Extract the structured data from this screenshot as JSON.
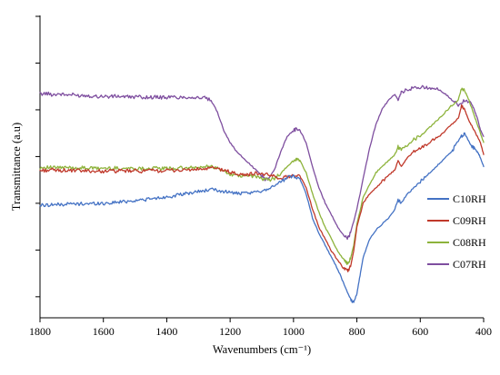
{
  "chart_data": {
    "type": "line",
    "title": "",
    "xlabel": "Wavenumbers (cm⁻¹)",
    "ylabel": "Transmittance (a.u)",
    "xlim": [
      1800,
      400
    ],
    "x_reversed": true,
    "x_ticks": [
      1800,
      1600,
      1400,
      1200,
      1000,
      800,
      600,
      400
    ],
    "y_tick_count": 7,
    "y_tick_labels_shown": false,
    "grid": false,
    "legend_position": "right",
    "series": [
      {
        "name": "C10RH",
        "color": "#4472C4",
        "points": [
          [
            1800,
            0.372
          ],
          [
            1780,
            0.373
          ],
          [
            1760,
            0.375
          ],
          [
            1740,
            0.374
          ],
          [
            1720,
            0.376
          ],
          [
            1700,
            0.377
          ],
          [
            1680,
            0.376
          ],
          [
            1660,
            0.378
          ],
          [
            1640,
            0.377
          ],
          [
            1620,
            0.379
          ],
          [
            1600,
            0.378
          ],
          [
            1580,
            0.38
          ],
          [
            1560,
            0.382
          ],
          [
            1540,
            0.384
          ],
          [
            1520,
            0.386
          ],
          [
            1500,
            0.388
          ],
          [
            1480,
            0.39
          ],
          [
            1460,
            0.392
          ],
          [
            1440,
            0.394
          ],
          [
            1420,
            0.397
          ],
          [
            1400,
            0.4
          ],
          [
            1380,
            0.403
          ],
          [
            1360,
            0.406
          ],
          [
            1340,
            0.41
          ],
          [
            1320,
            0.414
          ],
          [
            1300,
            0.418
          ],
          [
            1280,
            0.421
          ],
          [
            1260,
            0.424
          ],
          [
            1240,
            0.421
          ],
          [
            1220,
            0.418
          ],
          [
            1200,
            0.415
          ],
          [
            1180,
            0.412
          ],
          [
            1160,
            0.41
          ],
          [
            1140,
            0.412
          ],
          [
            1120,
            0.415
          ],
          [
            1100,
            0.42
          ],
          [
            1080,
            0.428
          ],
          [
            1060,
            0.438
          ],
          [
            1040,
            0.45
          ],
          [
            1020,
            0.462
          ],
          [
            1000,
            0.47
          ],
          [
            980,
            0.46
          ],
          [
            960,
            0.41
          ],
          [
            940,
            0.33
          ],
          [
            920,
            0.28
          ],
          [
            900,
            0.24
          ],
          [
            880,
            0.2
          ],
          [
            860,
            0.16
          ],
          [
            840,
            0.11
          ],
          [
            820,
            0.06
          ],
          [
            810,
            0.05
          ],
          [
            800,
            0.08
          ],
          [
            790,
            0.14
          ],
          [
            780,
            0.2
          ],
          [
            760,
            0.26
          ],
          [
            740,
            0.29
          ],
          [
            720,
            0.31
          ],
          [
            700,
            0.33
          ],
          [
            680,
            0.36
          ],
          [
            670,
            0.39
          ],
          [
            660,
            0.38
          ],
          [
            640,
            0.41
          ],
          [
            620,
            0.43
          ],
          [
            600,
            0.45
          ],
          [
            580,
            0.47
          ],
          [
            560,
            0.49
          ],
          [
            540,
            0.51
          ],
          [
            520,
            0.53
          ],
          [
            500,
            0.55
          ],
          [
            490,
            0.57
          ],
          [
            470,
            0.6
          ],
          [
            460,
            0.61
          ],
          [
            450,
            0.59
          ],
          [
            440,
            0.57
          ],
          [
            430,
            0.56
          ],
          [
            420,
            0.55
          ],
          [
            410,
            0.53
          ],
          [
            400,
            0.5
          ]
        ]
      },
      {
        "name": "C09RH",
        "color": "#C0392B",
        "points": [
          [
            1800,
            0.487
          ],
          [
            1780,
            0.488
          ],
          [
            1760,
            0.489
          ],
          [
            1740,
            0.487
          ],
          [
            1720,
            0.488
          ],
          [
            1700,
            0.486
          ],
          [
            1680,
            0.487
          ],
          [
            1660,
            0.485
          ],
          [
            1640,
            0.486
          ],
          [
            1620,
            0.484
          ],
          [
            1600,
            0.485
          ],
          [
            1580,
            0.486
          ],
          [
            1560,
            0.485
          ],
          [
            1540,
            0.486
          ],
          [
            1520,
            0.485
          ],
          [
            1500,
            0.486
          ],
          [
            1480,
            0.485
          ],
          [
            1460,
            0.486
          ],
          [
            1440,
            0.487
          ],
          [
            1420,
            0.486
          ],
          [
            1400,
            0.487
          ],
          [
            1380,
            0.488
          ],
          [
            1360,
            0.488
          ],
          [
            1340,
            0.489
          ],
          [
            1320,
            0.49
          ],
          [
            1300,
            0.491
          ],
          [
            1280,
            0.492
          ],
          [
            1260,
            0.495
          ],
          [
            1240,
            0.493
          ],
          [
            1220,
            0.488
          ],
          [
            1200,
            0.482
          ],
          [
            1180,
            0.476
          ],
          [
            1160,
            0.472
          ],
          [
            1140,
            0.475
          ],
          [
            1120,
            0.478
          ],
          [
            1100,
            0.476
          ],
          [
            1080,
            0.472
          ],
          [
            1060,
            0.468
          ],
          [
            1040,
            0.462
          ],
          [
            1020,
            0.466
          ],
          [
            1000,
            0.472
          ],
          [
            980,
            0.47
          ],
          [
            960,
            0.43
          ],
          [
            940,
            0.36
          ],
          [
            920,
            0.3
          ],
          [
            900,
            0.26
          ],
          [
            880,
            0.22
          ],
          [
            860,
            0.19
          ],
          [
            840,
            0.16
          ],
          [
            830,
            0.155
          ],
          [
            820,
            0.17
          ],
          [
            810,
            0.22
          ],
          [
            800,
            0.3
          ],
          [
            780,
            0.38
          ],
          [
            760,
            0.41
          ],
          [
            740,
            0.43
          ],
          [
            720,
            0.45
          ],
          [
            700,
            0.47
          ],
          [
            680,
            0.49
          ],
          [
            670,
            0.52
          ],
          [
            660,
            0.5
          ],
          [
            640,
            0.53
          ],
          [
            620,
            0.55
          ],
          [
            600,
            0.56
          ],
          [
            580,
            0.57
          ],
          [
            560,
            0.59
          ],
          [
            540,
            0.6
          ],
          [
            520,
            0.62
          ],
          [
            500,
            0.64
          ],
          [
            480,
            0.66
          ],
          [
            470,
            0.7
          ],
          [
            460,
            0.69
          ],
          [
            450,
            0.66
          ],
          [
            440,
            0.64
          ],
          [
            430,
            0.62
          ],
          [
            420,
            0.6
          ],
          [
            410,
            0.58
          ],
          [
            400,
            0.54
          ]
        ]
      },
      {
        "name": "C08RH",
        "color": "#8DB33B",
        "points": [
          [
            1800,
            0.497
          ],
          [
            1780,
            0.498
          ],
          [
            1760,
            0.496
          ],
          [
            1740,
            0.497
          ],
          [
            1720,
            0.496
          ],
          [
            1700,
            0.497
          ],
          [
            1680,
            0.495
          ],
          [
            1660,
            0.496
          ],
          [
            1640,
            0.495
          ],
          [
            1620,
            0.494
          ],
          [
            1600,
            0.495
          ],
          [
            1580,
            0.494
          ],
          [
            1560,
            0.495
          ],
          [
            1540,
            0.494
          ],
          [
            1520,
            0.495
          ],
          [
            1500,
            0.494
          ],
          [
            1480,
            0.494
          ],
          [
            1460,
            0.494
          ],
          [
            1440,
            0.495
          ],
          [
            1420,
            0.494
          ],
          [
            1400,
            0.494
          ],
          [
            1380,
            0.494
          ],
          [
            1360,
            0.495
          ],
          [
            1340,
            0.495
          ],
          [
            1320,
            0.496
          ],
          [
            1300,
            0.497
          ],
          [
            1280,
            0.499
          ],
          [
            1260,
            0.502
          ],
          [
            1240,
            0.494
          ],
          [
            1220,
            0.484
          ],
          [
            1200,
            0.476
          ],
          [
            1180,
            0.47
          ],
          [
            1160,
            0.468
          ],
          [
            1140,
            0.47
          ],
          [
            1120,
            0.468
          ],
          [
            1100,
            0.46
          ],
          [
            1080,
            0.455
          ],
          [
            1060,
            0.462
          ],
          [
            1040,
            0.478
          ],
          [
            1020,
            0.5
          ],
          [
            1000,
            0.52
          ],
          [
            990,
            0.525
          ],
          [
            980,
            0.52
          ],
          [
            960,
            0.48
          ],
          [
            940,
            0.41
          ],
          [
            920,
            0.35
          ],
          [
            900,
            0.3
          ],
          [
            880,
            0.26
          ],
          [
            860,
            0.22
          ],
          [
            840,
            0.19
          ],
          [
            830,
            0.18
          ],
          [
            820,
            0.195
          ],
          [
            810,
            0.24
          ],
          [
            800,
            0.31
          ],
          [
            780,
            0.4
          ],
          [
            760,
            0.44
          ],
          [
            740,
            0.48
          ],
          [
            720,
            0.5
          ],
          [
            700,
            0.52
          ],
          [
            680,
            0.54
          ],
          [
            670,
            0.565
          ],
          [
            660,
            0.555
          ],
          [
            640,
            0.57
          ],
          [
            620,
            0.59
          ],
          [
            600,
            0.6
          ],
          [
            580,
            0.62
          ],
          [
            560,
            0.64
          ],
          [
            540,
            0.66
          ],
          [
            520,
            0.68
          ],
          [
            500,
            0.7
          ],
          [
            480,
            0.72
          ],
          [
            470,
            0.76
          ],
          [
            460,
            0.75
          ],
          [
            450,
            0.73
          ],
          [
            440,
            0.7
          ],
          [
            430,
            0.67
          ],
          [
            420,
            0.64
          ],
          [
            410,
            0.61
          ],
          [
            400,
            0.58
          ]
        ]
      },
      {
        "name": "C07RH",
        "color": "#7E4E9F",
        "points": [
          [
            1800,
            0.74
          ],
          [
            1780,
            0.742
          ],
          [
            1760,
            0.738
          ],
          [
            1740,
            0.741
          ],
          [
            1720,
            0.737
          ],
          [
            1700,
            0.738
          ],
          [
            1680,
            0.735
          ],
          [
            1660,
            0.736
          ],
          [
            1640,
            0.734
          ],
          [
            1620,
            0.732
          ],
          [
            1600,
            0.733
          ],
          [
            1580,
            0.731
          ],
          [
            1560,
            0.733
          ],
          [
            1540,
            0.732
          ],
          [
            1520,
            0.73
          ],
          [
            1500,
            0.731
          ],
          [
            1480,
            0.73
          ],
          [
            1460,
            0.729
          ],
          [
            1440,
            0.73
          ],
          [
            1420,
            0.729
          ],
          [
            1400,
            0.729
          ],
          [
            1380,
            0.73
          ],
          [
            1360,
            0.729
          ],
          [
            1340,
            0.73
          ],
          [
            1320,
            0.729
          ],
          [
            1300,
            0.728
          ],
          [
            1280,
            0.727
          ],
          [
            1260,
            0.718
          ],
          [
            1240,
            0.68
          ],
          [
            1220,
            0.62
          ],
          [
            1200,
            0.58
          ],
          [
            1180,
            0.55
          ],
          [
            1160,
            0.53
          ],
          [
            1140,
            0.51
          ],
          [
            1120,
            0.49
          ],
          [
            1100,
            0.47
          ],
          [
            1090,
            0.458
          ],
          [
            1080,
            0.46
          ],
          [
            1060,
            0.49
          ],
          [
            1040,
            0.55
          ],
          [
            1020,
            0.6
          ],
          [
            1000,
            0.62
          ],
          [
            990,
            0.625
          ],
          [
            980,
            0.62
          ],
          [
            960,
            0.58
          ],
          [
            940,
            0.5
          ],
          [
            920,
            0.43
          ],
          [
            900,
            0.38
          ],
          [
            880,
            0.34
          ],
          [
            860,
            0.3
          ],
          [
            840,
            0.27
          ],
          [
            830,
            0.262
          ],
          [
            820,
            0.28
          ],
          [
            800,
            0.36
          ],
          [
            780,
            0.46
          ],
          [
            760,
            0.56
          ],
          [
            740,
            0.64
          ],
          [
            720,
            0.69
          ],
          [
            700,
            0.72
          ],
          [
            680,
            0.74
          ],
          [
            670,
            0.72
          ],
          [
            660,
            0.745
          ],
          [
            640,
            0.755
          ],
          [
            620,
            0.76
          ],
          [
            600,
            0.762
          ],
          [
            580,
            0.762
          ],
          [
            560,
            0.76
          ],
          [
            540,
            0.752
          ],
          [
            520,
            0.74
          ],
          [
            500,
            0.72
          ],
          [
            480,
            0.705
          ],
          [
            460,
            0.72
          ],
          [
            440,
            0.71
          ],
          [
            430,
            0.69
          ],
          [
            420,
            0.66
          ],
          [
            410,
            0.62
          ],
          [
            400,
            0.6
          ]
        ]
      }
    ]
  }
}
